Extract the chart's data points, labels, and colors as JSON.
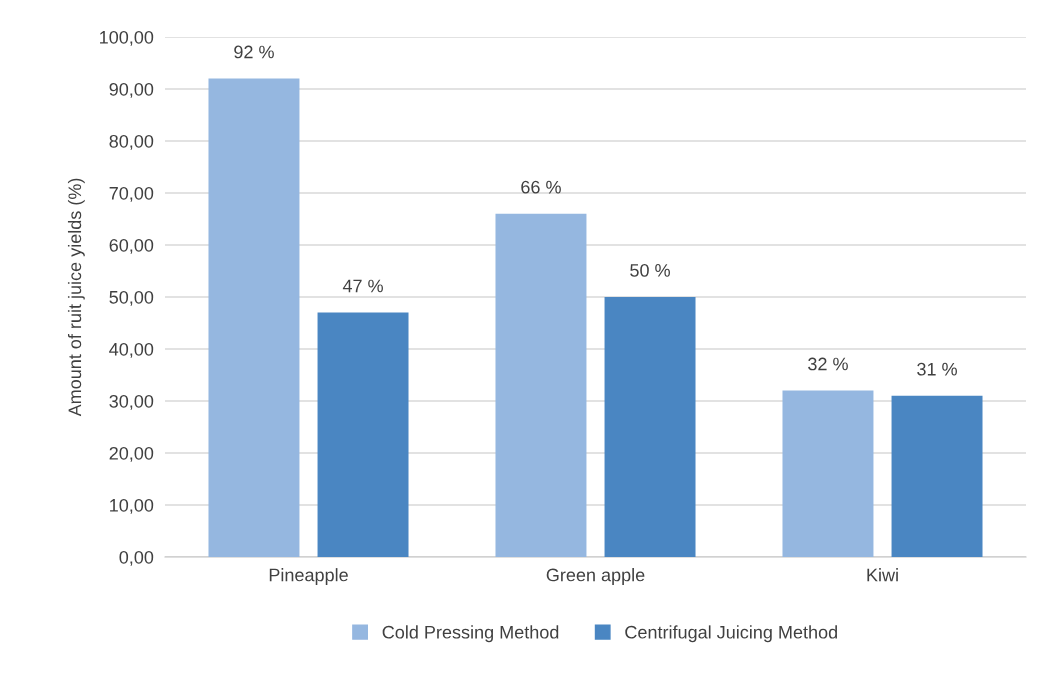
{
  "chart_data": {
    "type": "bar",
    "ylabel": "Amount of ruit juice yields (%)",
    "categories": [
      "Pineapple",
      "Green apple",
      "Kiwi"
    ],
    "series": [
      {
        "name": "Cold Pressing Method",
        "color": "#95b7e0",
        "values": [
          92,
          66,
          32
        ],
        "value_labels": [
          "92 %",
          "66 %",
          "32 %"
        ]
      },
      {
        "name": "Centrifugal Juicing Method",
        "color": "#4a86c2",
        "values": [
          47,
          50,
          31
        ],
        "value_labels": [
          "47 %",
          "50 %",
          "31 %"
        ]
      }
    ],
    "ylim": [
      0,
      100
    ],
    "yticks": [
      {
        "value": 0,
        "label": "0,00"
      },
      {
        "value": 10,
        "label": "10,00"
      },
      {
        "value": 20,
        "label": "20,00"
      },
      {
        "value": 30,
        "label": "30,00"
      },
      {
        "value": 40,
        "label": "40,00"
      },
      {
        "value": 50,
        "label": "50,00"
      },
      {
        "value": 60,
        "label": "60,00"
      },
      {
        "value": 70,
        "label": "70,00"
      },
      {
        "value": 80,
        "label": "80,00"
      },
      {
        "value": 90,
        "label": "90,00"
      },
      {
        "value": 100,
        "label": "100,00"
      }
    ],
    "grid": "y",
    "legend": "bottom"
  }
}
